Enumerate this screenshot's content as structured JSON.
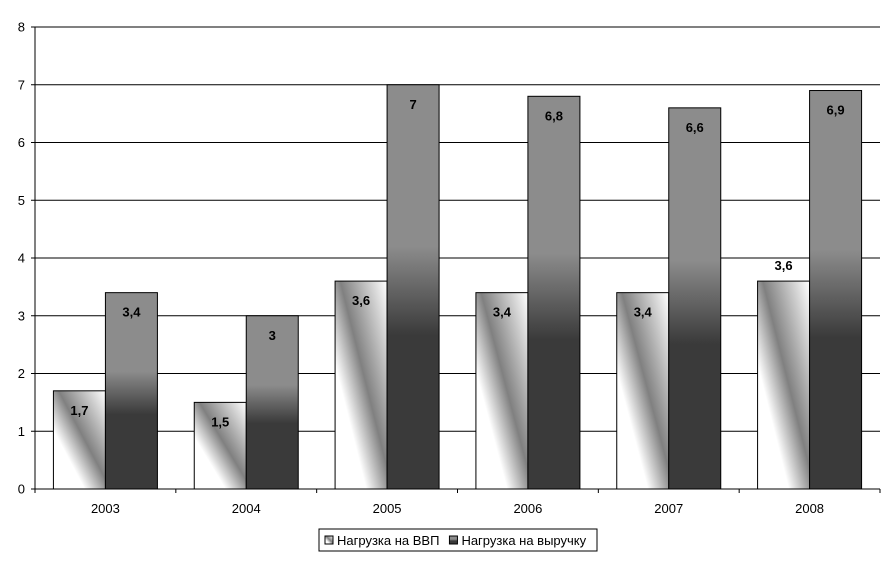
{
  "chart_data": {
    "type": "bar",
    "categories": [
      "2003",
      "2004",
      "2005",
      "2006",
      "2007",
      "2008"
    ],
    "series": [
      {
        "name": "Нагрузка на ВВП",
        "values": [
          1.7,
          1.5,
          3.6,
          3.4,
          3.4,
          3.6
        ],
        "labels": [
          "1,7",
          "1,5",
          "3,6",
          "3,4",
          "3,4",
          "3,6"
        ]
      },
      {
        "name": "Нагрузка на выручку",
        "values": [
          3.4,
          3,
          7,
          6.8,
          6.6,
          6.9
        ],
        "labels": [
          "3,4",
          "3",
          "7",
          "6,8",
          "6,6",
          "6,9"
        ]
      }
    ],
    "ylim": [
      0,
      8
    ],
    "yticks": [
      "0",
      "1",
      "2",
      "3",
      "4",
      "5",
      "6",
      "7",
      "8"
    ],
    "grid": true,
    "legend_position": "bottom",
    "colors": {
      "series1_light": "#ffffff",
      "series1_dark": "#808080",
      "series2_light": "#8c8c8c",
      "series2_dark": "#3a3a3a",
      "grid": "#000000"
    }
  }
}
